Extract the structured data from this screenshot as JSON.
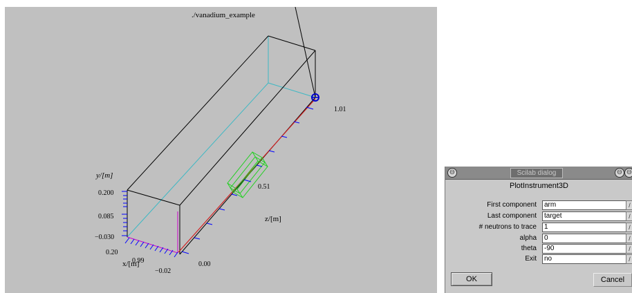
{
  "plot": {
    "title": "./vanadium_example",
    "y_axis_label": "y/[m]",
    "x_axis_label": "x/[m]",
    "z_axis_label": "z/[m]",
    "y_ticks": [
      "0.200",
      "0.085",
      "−0.030"
    ],
    "x_ticks": [
      "0.20",
      "0.99",
      "−0.02"
    ],
    "z_ticks": [
      "0.00",
      "0.51",
      "1.01"
    ],
    "colors": {
      "background": "#c0c0c0",
      "box": "#000000",
      "cyan_edge": "#3cb8c4",
      "beam": "#d02020",
      "sample": "#20d020",
      "marker": "#0000cc",
      "axis_ticks": "#0000ff",
      "magenta": "#cc00cc"
    }
  },
  "dialog": {
    "window_title": "Scilab dialog",
    "heading": "PlotInstrument3D",
    "rows": [
      {
        "label": "First component",
        "value": "arm"
      },
      {
        "label": "Last component",
        "value": "target"
      },
      {
        "label": "# neutrons to trace",
        "value": "1"
      },
      {
        "label": "alpha",
        "value": "0"
      },
      {
        "label": "theta",
        "value": "-90"
      },
      {
        "label": "Exit",
        "value": "no"
      }
    ],
    "row_button": "/",
    "ok_label": "OK",
    "cancel_label": "Cancel"
  }
}
